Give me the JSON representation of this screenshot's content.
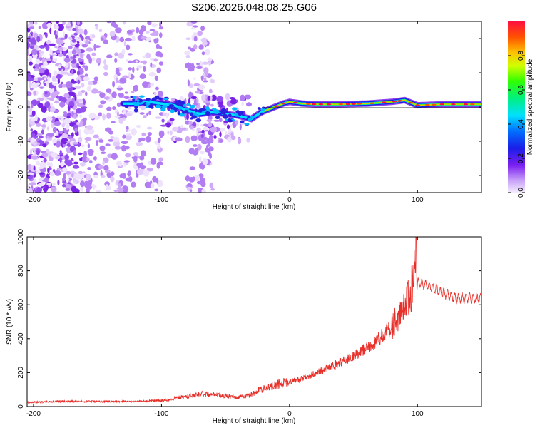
{
  "title": "S206.2026.048.08.25.G06",
  "chart_data": [
    {
      "type": "heatmap",
      "name": "spectrogram",
      "xlabel": "Height of straight line (km)",
      "ylabel": "Frequency (Hz)",
      "xlim": [
        -205,
        150
      ],
      "ylim": [
        -25,
        25
      ],
      "xticks": [
        -200,
        -100,
        0,
        100
      ],
      "yticks": [
        -20,
        -10,
        0,
        10,
        20
      ],
      "colorbar": {
        "label": "Normalized spectral amplitude",
        "range": [
          0,
          1
        ],
        "ticks": [
          "0.0",
          "0.2",
          "0.4",
          "0.6",
          "0.8"
        ]
      },
      "ridge": {
        "x": [
          -130,
          -120,
          -110,
          -100,
          -90,
          -80,
          -70,
          -60,
          -50,
          -40,
          -30,
          -22,
          -15,
          -5,
          0,
          10,
          20,
          40,
          60,
          80,
          90,
          100,
          120,
          150
        ],
        "freq": [
          1,
          1,
          1.5,
          1,
          0.5,
          -1,
          -2,
          -1.5,
          -2,
          -2.5,
          -3.5,
          -1.5,
          -0.5,
          1,
          1.5,
          1,
          0.8,
          0.8,
          1,
          1.5,
          2,
          0.5,
          0.8,
          0.8
        ]
      }
    },
    {
      "type": "line",
      "name": "snr",
      "xlabel": "Height of straight line (km)",
      "ylabel": "SNR (10 * v/v)",
      "xlim": [
        -205,
        150
      ],
      "ylim": [
        0,
        1000
      ],
      "xticks": [
        -200,
        -100,
        0,
        100
      ],
      "yticks": [
        0,
        200,
        400,
        600,
        800,
        1000
      ],
      "color": "#e8302a",
      "envelope": {
        "x": [
          -205,
          -180,
          -150,
          -120,
          -100,
          -80,
          -70,
          -60,
          -40,
          -30,
          -20,
          -10,
          0,
          10,
          20,
          30,
          40,
          50,
          60,
          70,
          80,
          85,
          90,
          95,
          100,
          110,
          120,
          130,
          140,
          150
        ],
        "y": [
          25,
          30,
          30,
          30,
          35,
          60,
          75,
          70,
          55,
          70,
          110,
          130,
          145,
          165,
          195,
          225,
          260,
          300,
          345,
          400,
          470,
          540,
          620,
          650,
          730,
          710,
          670,
          640,
          640,
          640
        ]
      },
      "peak": {
        "x": 99,
        "y": 1000
      }
    }
  ]
}
